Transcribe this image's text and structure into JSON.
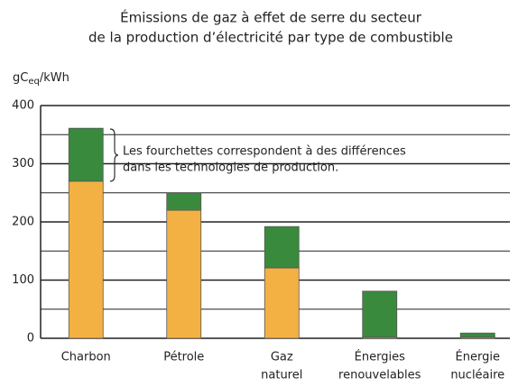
{
  "chart_data": {
    "type": "stacked-bar",
    "title": [
      "Émissions de gaz à effet de serre du secteur",
      "de la production d’électricité par type de combustible"
    ],
    "y_label": [
      "gC",
      "eq",
      "/kWh"
    ],
    "categories": [
      [
        "Charbon"
      ],
      [
        "Pétrole"
      ],
      [
        "Gaz",
        "naturel"
      ],
      [
        "Énergies",
        "renouvelables"
      ],
      [
        "Énergie",
        "nucléaire"
      ]
    ],
    "series": [
      {
        "color": "#f4b143",
        "values": [
          270,
          220,
          121,
          2,
          2
        ]
      },
      {
        "color": "#3a8a3e",
        "values": [
          91,
          30,
          71,
          79,
          7
        ]
      }
    ],
    "annotation": [
      "Les fourchettes correspondent à des différences",
      "dans les technologies de production."
    ],
    "ylim": [
      0,
      400
    ],
    "yticks": [
      0,
      100,
      200,
      300,
      400
    ],
    "minor_yticks": [
      50,
      150,
      250,
      350
    ],
    "grid": true
  }
}
